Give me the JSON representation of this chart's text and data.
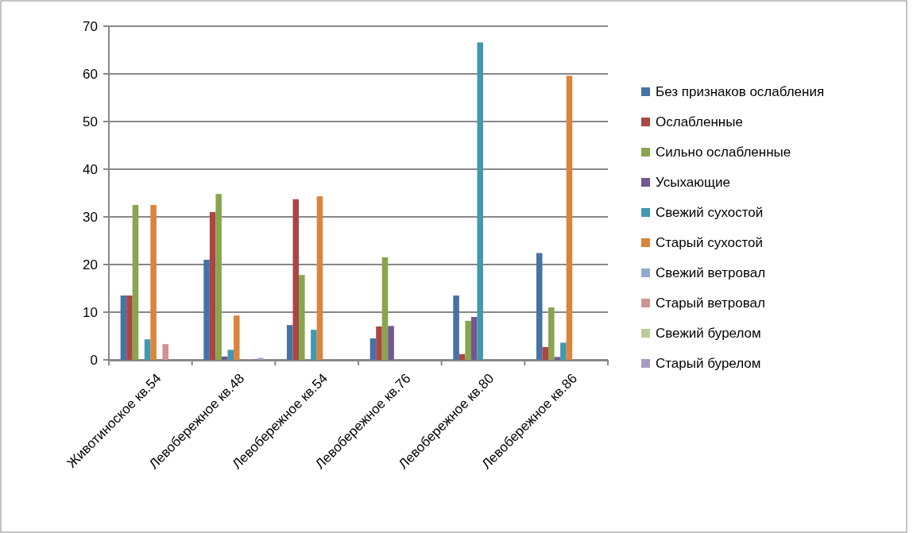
{
  "chart_data": {
    "type": "bar",
    "categories": [
      "Животиноское кв.54",
      "Левобережное кв.48",
      "Левобережное кв.54",
      "Левобережное кв.76",
      "Левобережное кв.80",
      "Левобережное кв.86"
    ],
    "series": [
      {
        "name": "Без признаков ослабления",
        "color": "#4572a7",
        "values": [
          13.5,
          21,
          7.3,
          4.5,
          13.5,
          22.4
        ]
      },
      {
        "name": "Ослабленные",
        "color": "#aa4643",
        "values": [
          13.5,
          31,
          33.7,
          7,
          1.2,
          2.7
        ]
      },
      {
        "name": "Сильно ослабленные",
        "color": "#89a54e",
        "values": [
          32.5,
          34.8,
          17.8,
          21.5,
          8.2,
          11
        ]
      },
      {
        "name": "Усыхающие",
        "color": "#71588f",
        "values": [
          0,
          0.7,
          0,
          7.1,
          9,
          0.6
        ]
      },
      {
        "name": "Свежий сухостой",
        "color": "#4198af",
        "values": [
          4.3,
          2.1,
          6.3,
          0,
          66.6,
          3.6
        ]
      },
      {
        "name": "Старый сухостой",
        "color": "#db843d",
        "values": [
          32.5,
          9.3,
          34.3,
          0,
          0,
          59.6
        ]
      },
      {
        "name": "Свежий ветровал",
        "color": "#93a9cf",
        "values": [
          0,
          0,
          0,
          0,
          0,
          0
        ]
      },
      {
        "name": "Старый ветровал",
        "color": "#d19392",
        "values": [
          3.3,
          0.1,
          0,
          0,
          0,
          0
        ]
      },
      {
        "name": "Свежий бурелом",
        "color": "#b9cd96",
        "values": [
          0,
          0,
          0,
          0,
          0,
          0
        ]
      },
      {
        "name": "Старый бурелом",
        "color": "#a99bbd",
        "values": [
          0,
          0.4,
          0,
          0,
          0,
          0
        ]
      }
    ],
    "ylim": [
      0,
      70
    ],
    "yticks": [
      0,
      10,
      20,
      30,
      40,
      50,
      60,
      70
    ],
    "grid": "y",
    "legend": "right"
  }
}
